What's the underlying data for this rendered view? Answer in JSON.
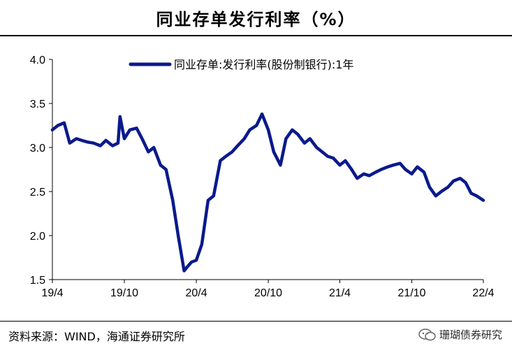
{
  "header": {
    "title": "同业存单发行利率（%）"
  },
  "footer": {
    "source": "资料来源：WIND，海通证券研究所",
    "watermark": "珊瑚债券研究"
  },
  "colors": {
    "series": "#0a1a8c"
  },
  "chart_data": {
    "type": "line",
    "title": "同业存单发行利率（%）",
    "xlabel": "",
    "ylabel": "",
    "ylim": [
      1.5,
      4.0
    ],
    "yticks": [
      "1.5",
      "2.0",
      "2.5",
      "3.0",
      "3.5",
      "4.0"
    ],
    "xticks": [
      "19/4",
      "19/10",
      "20/4",
      "20/10",
      "21/4",
      "21/10",
      "22/4"
    ],
    "grid": false,
    "legend": "top",
    "series": [
      {
        "name": "同业存单:发行利率(股份制银行):1年",
        "x": [
          "2019-04-01",
          "2019-04-15",
          "2019-05-01",
          "2019-05-15",
          "2019-06-01",
          "2019-06-15",
          "2019-07-01",
          "2019-07-15",
          "2019-08-01",
          "2019-08-15",
          "2019-09-01",
          "2019-09-15",
          "2019-09-20",
          "2019-10-01",
          "2019-10-15",
          "2019-11-01",
          "2019-11-15",
          "2019-12-01",
          "2019-12-15",
          "2020-01-01",
          "2020-01-15",
          "2020-02-01",
          "2020-02-15",
          "2020-03-01",
          "2020-03-10",
          "2020-03-20",
          "2020-04-01",
          "2020-04-15",
          "2020-05-01",
          "2020-05-15",
          "2020-06-01",
          "2020-06-15",
          "2020-07-01",
          "2020-07-15",
          "2020-08-01",
          "2020-08-15",
          "2020-09-01",
          "2020-09-15",
          "2020-10-01",
          "2020-10-15",
          "2020-11-01",
          "2020-11-15",
          "2020-12-01",
          "2020-12-15",
          "2021-01-01",
          "2021-01-15",
          "2021-02-01",
          "2021-02-15",
          "2021-03-01",
          "2021-03-15",
          "2021-04-01",
          "2021-04-15",
          "2021-05-01",
          "2021-05-15",
          "2021-06-01",
          "2021-06-15",
          "2021-07-01",
          "2021-07-15",
          "2021-08-01",
          "2021-08-15",
          "2021-09-01",
          "2021-09-15",
          "2021-10-01",
          "2021-10-15",
          "2021-11-01",
          "2021-11-15",
          "2021-12-01",
          "2021-12-15",
          "2022-01-01",
          "2022-01-15",
          "2022-02-01",
          "2022-02-15",
          "2022-03-01",
          "2022-03-15",
          "2022-04-01"
        ],
        "values": [
          3.2,
          3.25,
          3.28,
          3.05,
          3.1,
          3.08,
          3.06,
          3.05,
          3.02,
          3.08,
          3.02,
          3.05,
          3.35,
          3.1,
          3.2,
          3.22,
          3.1,
          2.95,
          3.0,
          2.8,
          2.75,
          2.4,
          2.0,
          1.6,
          1.65,
          1.7,
          1.72,
          1.9,
          2.4,
          2.45,
          2.85,
          2.9,
          2.95,
          3.02,
          3.1,
          3.2,
          3.25,
          3.38,
          3.2,
          2.95,
          2.8,
          3.1,
          3.2,
          3.15,
          3.05,
          3.1,
          3.0,
          2.95,
          2.9,
          2.88,
          2.8,
          2.85,
          2.75,
          2.65,
          2.7,
          2.68,
          2.72,
          2.75,
          2.78,
          2.8,
          2.82,
          2.75,
          2.7,
          2.78,
          2.72,
          2.55,
          2.45,
          2.5,
          2.55,
          2.62,
          2.65,
          2.6,
          2.48,
          2.45,
          2.4
        ]
      }
    ]
  }
}
